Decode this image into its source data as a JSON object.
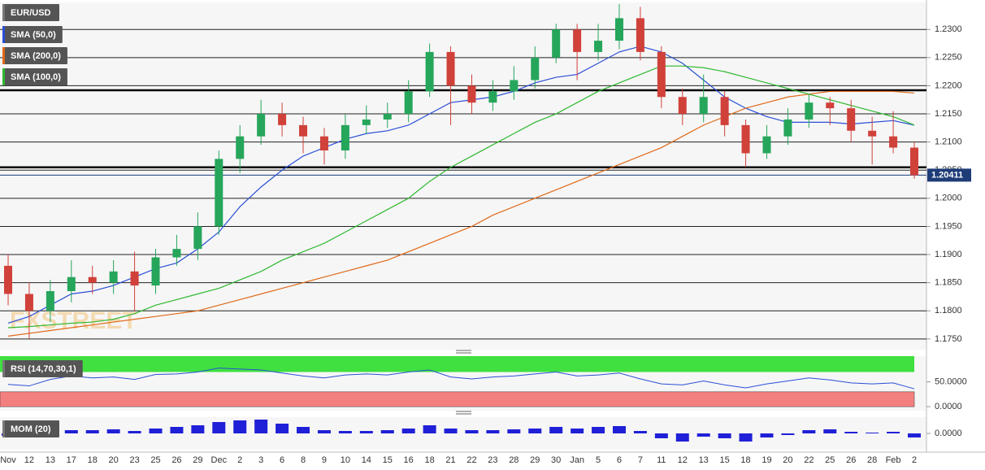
{
  "chart_data": [
    {
      "type": "candlestick",
      "title": "EUR/USD",
      "watermark": "FXSTREET",
      "categories": [
        "Nov",
        "12",
        "13",
        "17",
        "18",
        "20",
        "23",
        "25",
        "26",
        "29",
        "Dec",
        "2",
        "3",
        "6",
        "8",
        "9",
        "10",
        "14",
        "15",
        "16",
        "18",
        "21",
        "22",
        "23",
        "28",
        "29",
        "30",
        "Jan",
        "5",
        "6",
        "7",
        "11",
        "12",
        "13",
        "15",
        "18",
        "19",
        "20",
        "22",
        "25",
        "26",
        "28",
        "Feb",
        "2"
      ],
      "open": [
        1.188,
        1.183,
        1.18,
        1.1835,
        1.186,
        1.185,
        1.187,
        1.1845,
        1.1895,
        1.191,
        1.195,
        1.207,
        1.211,
        1.215,
        1.213,
        1.211,
        1.2085,
        1.213,
        1.214,
        1.215,
        1.219,
        1.226,
        1.22,
        1.217,
        1.219,
        1.221,
        1.225,
        1.23,
        1.226,
        1.228,
        1.232,
        1.226,
        1.218,
        1.215,
        1.218,
        1.213,
        1.208,
        1.211,
        1.214,
        1.217,
        1.216,
        1.212,
        1.211,
        1.209
      ],
      "high": [
        1.19,
        1.185,
        1.1855,
        1.189,
        1.188,
        1.189,
        1.1905,
        1.191,
        1.1935,
        1.1975,
        1.2085,
        1.213,
        1.2175,
        1.217,
        1.2145,
        1.2125,
        1.215,
        1.2165,
        1.217,
        1.221,
        1.2275,
        1.227,
        1.222,
        1.221,
        1.2235,
        1.227,
        1.231,
        1.231,
        1.231,
        1.2345,
        1.234,
        1.227,
        1.2195,
        1.222,
        1.219,
        1.214,
        1.213,
        1.216,
        1.2185,
        1.218,
        1.2175,
        1.2145,
        1.2155,
        1.21
      ],
      "low": [
        1.181,
        1.175,
        1.178,
        1.1815,
        1.183,
        1.183,
        1.18,
        1.183,
        1.188,
        1.189,
        1.1935,
        1.2045,
        1.2095,
        1.211,
        1.208,
        1.206,
        1.207,
        1.2115,
        1.2125,
        1.2135,
        1.218,
        1.213,
        1.215,
        1.2155,
        1.2175,
        1.2195,
        1.224,
        1.221,
        1.2245,
        1.2265,
        1.2245,
        1.216,
        1.213,
        1.2135,
        1.211,
        1.2055,
        1.207,
        1.2095,
        1.2125,
        1.213,
        1.21,
        1.206,
        1.208,
        1.2035
      ],
      "close": [
        1.183,
        1.18,
        1.1835,
        1.186,
        1.185,
        1.187,
        1.1845,
        1.1895,
        1.191,
        1.195,
        1.207,
        1.211,
        1.215,
        1.213,
        1.211,
        1.2085,
        1.213,
        1.214,
        1.215,
        1.219,
        1.226,
        1.22,
        1.217,
        1.219,
        1.221,
        1.225,
        1.23,
        1.226,
        1.228,
        1.232,
        1.226,
        1.218,
        1.215,
        1.218,
        1.213,
        1.208,
        1.211,
        1.214,
        1.217,
        1.216,
        1.212,
        1.211,
        1.209,
        1.2041
      ],
      "up_color": "#26a65b",
      "down_color": "#d0413a",
      "series": [
        {
          "name": "SMA (50,0)",
          "color": "#2a4fd6",
          "values": [
            1.1778,
            1.179,
            1.181,
            1.183,
            1.1835,
            1.1845,
            1.186,
            1.1875,
            1.1885,
            1.191,
            1.194,
            1.1985,
            1.202,
            1.205,
            1.2075,
            1.209,
            1.2105,
            1.2115,
            1.212,
            1.213,
            1.215,
            1.217,
            1.2175,
            1.218,
            1.219,
            1.2205,
            1.2215,
            1.222,
            1.224,
            1.226,
            1.227,
            1.226,
            1.224,
            1.221,
            1.218,
            1.216,
            1.2145,
            1.2135,
            1.2135,
            1.2135,
            1.2132,
            1.2135,
            1.2138,
            1.213
          ]
        },
        {
          "name": "SMA (200,0)",
          "color": "#e0691a",
          "values": [
            1.1755,
            1.176,
            1.1765,
            1.177,
            1.1775,
            1.178,
            1.1785,
            1.179,
            1.1795,
            1.18,
            1.181,
            1.182,
            1.183,
            1.184,
            1.185,
            1.186,
            1.187,
            1.188,
            1.189,
            1.1905,
            1.192,
            1.1935,
            1.195,
            1.197,
            1.1985,
            1.2,
            1.2015,
            1.203,
            1.2045,
            1.206,
            1.2075,
            1.209,
            1.211,
            1.213,
            1.2145,
            1.216,
            1.217,
            1.218,
            1.2185,
            1.219,
            1.219,
            1.219,
            1.219,
            1.2187
          ]
        },
        {
          "name": "SMA (100,0)",
          "color": "#2fb82f",
          "values": [
            1.177,
            1.1772,
            1.1775,
            1.1778,
            1.178,
            1.1785,
            1.1795,
            1.181,
            1.182,
            1.183,
            1.184,
            1.1855,
            1.187,
            1.189,
            1.1905,
            1.192,
            1.194,
            1.196,
            1.198,
            1.2,
            1.203,
            1.2055,
            1.2075,
            1.2095,
            1.2115,
            1.2135,
            1.215,
            1.217,
            1.219,
            1.2205,
            1.222,
            1.2235,
            1.2235,
            1.2232,
            1.2225,
            1.2215,
            1.2205,
            1.2195,
            1.2185,
            1.2175,
            1.2165,
            1.2155,
            1.2145,
            1.213
          ]
        }
      ],
      "last_price": 1.20411,
      "levels": [
        1.2192,
        1.2055
      ],
      "ylim": [
        1.1731,
        1.2348
      ],
      "yticks": [
        {
          "value": 1.175,
          "label": "1.1750"
        },
        {
          "value": 1.18,
          "label": "1.1800"
        },
        {
          "value": 1.185,
          "label": "1.1850"
        },
        {
          "value": 1.19,
          "label": "1.1900"
        },
        {
          "value": 1.195,
          "label": "1.1950"
        },
        {
          "value": 1.2,
          "label": "1.2000"
        },
        {
          "value": 1.205,
          "label": "1.2050"
        },
        {
          "value": 1.21,
          "label": "1.2100"
        },
        {
          "value": 1.215,
          "label": "1.2150"
        },
        {
          "value": 1.22,
          "label": "1.2200"
        },
        {
          "value": 1.225,
          "label": "1.2250"
        },
        {
          "value": 1.23,
          "label": "1.2300"
        }
      ],
      "grid": true
    },
    {
      "type": "line",
      "title": "RSI (14,70,30,1)",
      "color": "#2a4fd6",
      "values": [
        45,
        42,
        55,
        62,
        58,
        60,
        55,
        65,
        66,
        70,
        78,
        76,
        74,
        68,
        62,
        58,
        64,
        66,
        64,
        70,
        74,
        60,
        56,
        60,
        62,
        66,
        70,
        62,
        64,
        68,
        56,
        46,
        44,
        52,
        44,
        38,
        46,
        52,
        58,
        54,
        48,
        46,
        48,
        36
      ],
      "overbought": 70,
      "oversold": 30,
      "overbought_color": "#3fe03f",
      "oversold_color": "#f47f7f",
      "ylim": [
        -8,
        102
      ],
      "yticks": [
        {
          "value": 0,
          "label": "0.0000"
        },
        {
          "value": 50,
          "label": "50.0000"
        }
      ]
    },
    {
      "type": "bar",
      "title": "MOM (20)",
      "color": "#2020d8",
      "values": [
        -0.003,
        -0.004,
        0.002,
        0.004,
        0.004,
        0.005,
        0.003,
        0.006,
        0.008,
        0.01,
        0.014,
        0.016,
        0.017,
        0.012,
        0.008,
        0.004,
        0.003,
        0.003,
        0.004,
        0.006,
        0.01,
        0.006,
        0.004,
        0.004,
        0.005,
        0.006,
        0.008,
        0.006,
        0.008,
        0.009,
        0.003,
        -0.006,
        -0.01,
        -0.004,
        -0.006,
        -0.01,
        -0.005,
        -0.002,
        0.004,
        0.005,
        0.002,
        0.001,
        0.002,
        -0.005
      ],
      "ylim": [
        -0.02,
        0.02
      ],
      "yticks": [
        {
          "value": 0,
          "label": "0.0000"
        }
      ]
    }
  ]
}
